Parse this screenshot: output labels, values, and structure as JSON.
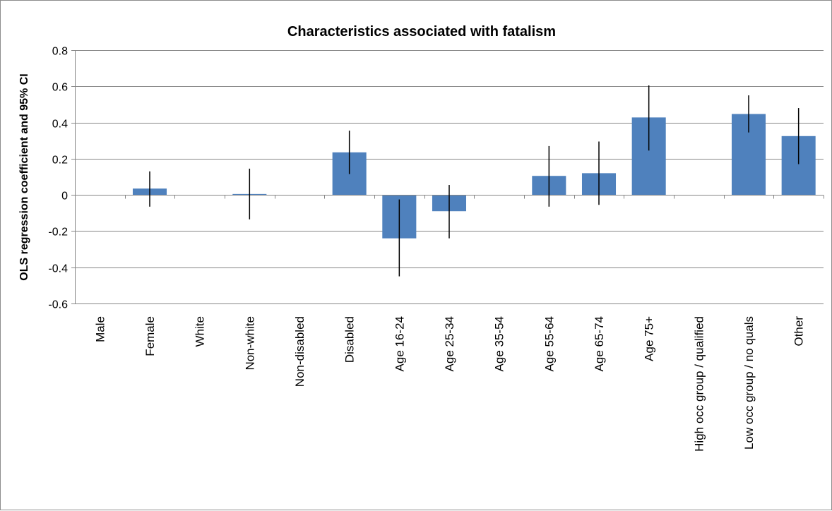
{
  "chart_data": {
    "type": "bar",
    "title": "Characteristics associated with fatalism",
    "xlabel": "",
    "ylabel": "OLS regression coefficient and 95% CI",
    "ylim": [
      -0.6,
      0.8
    ],
    "yticks": [
      -0.6,
      -0.4,
      -0.2,
      0,
      0.2,
      0.4,
      0.6,
      0.8
    ],
    "ytick_labels": [
      "-0.6",
      "-0.4",
      "-0.2",
      "0",
      "0.2",
      "0.4",
      "0.6",
      "0.8"
    ],
    "grid": true,
    "legend": "none",
    "bar_color": "#4f81bd",
    "categories": [
      "Male",
      "Female",
      "White",
      "Non-white",
      "Non-disabled",
      "Disabled",
      "Age 16-24",
      "Age 25-34",
      "Age 35-54",
      "Age 55-64",
      "Age 65-74",
      "Age 75+",
      "High occ group / qualified",
      "Low occ group / no quals",
      "Other"
    ],
    "values": [
      0,
      0.035,
      0,
      0.005,
      0,
      0.235,
      -0.24,
      -0.09,
      0,
      0.105,
      0.12,
      0.428,
      0,
      0.447,
      0.325
    ],
    "ci_lower": [
      null,
      -0.065,
      null,
      -0.135,
      null,
      0.115,
      -0.45,
      -0.24,
      null,
      -0.065,
      -0.055,
      0.245,
      null,
      0.345,
      0.17
    ],
    "ci_upper": [
      null,
      0.13,
      null,
      0.145,
      null,
      0.355,
      -0.025,
      0.055,
      null,
      0.27,
      0.295,
      0.605,
      null,
      0.55,
      0.48
    ]
  }
}
